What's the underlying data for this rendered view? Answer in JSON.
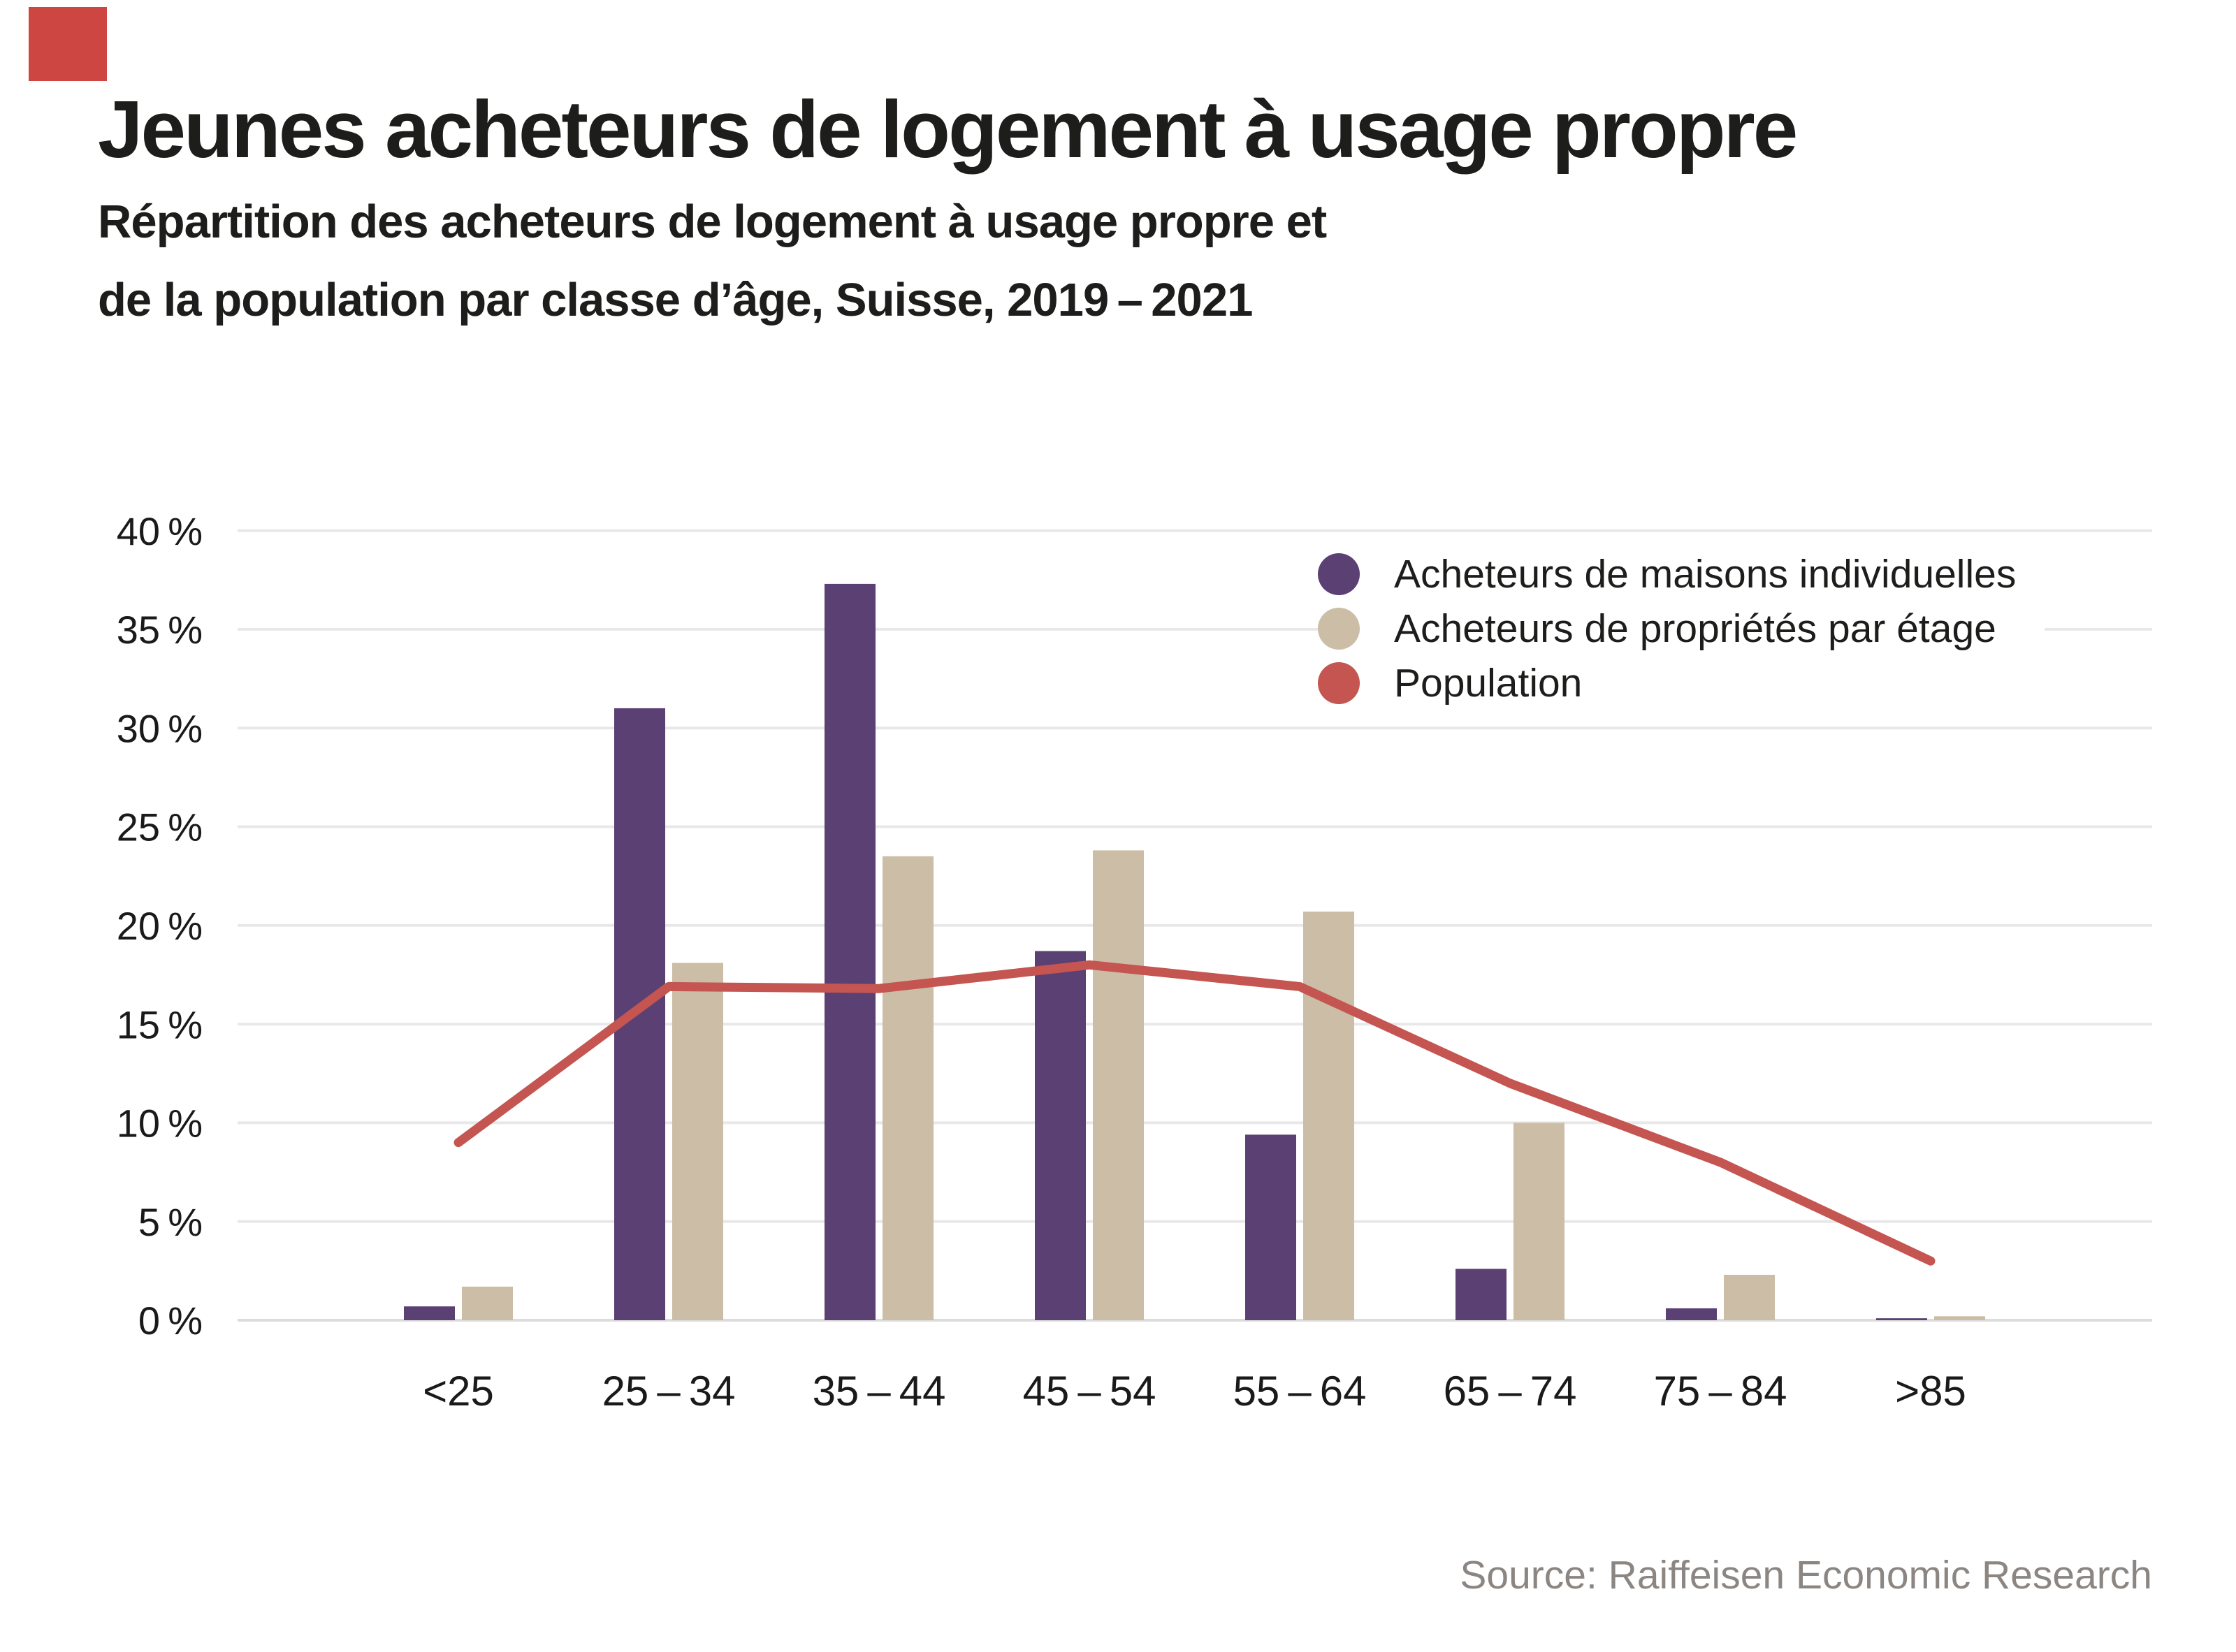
{
  "logo": {
    "name": "raiffeisen-red-square",
    "color": "#CE4641"
  },
  "header": {
    "title": "Jeunes acheteurs de logement à usage propre",
    "subtitle_line1": "Répartition des acheteurs de logement à usage propre et",
    "subtitle_line2": "de la population par classe d’âge, Suisse, 2019 – 2021"
  },
  "legend": {
    "items": [
      {
        "label": "Acheteurs de maisons individuelles",
        "color": "#5B4074"
      },
      {
        "label": "Acheteurs de propriétés par étage",
        "color": "#CCBDA6"
      },
      {
        "label": "Population",
        "color": "#C45551"
      }
    ]
  },
  "source": {
    "text": "Source: Raiffeisen Economic Research",
    "color": "#8C8682"
  },
  "chart_data": {
    "type": "bar+line",
    "title": "Jeunes acheteurs de logement à usage propre",
    "categories": [
      "<25",
      "25 – 34",
      "35 – 44",
      "45 – 54",
      "55 – 64",
      "65 – 74",
      "75 – 84",
      ">85"
    ],
    "series": [
      {
        "name": "Acheteurs de maisons individuelles",
        "type": "bar",
        "color": "#5B4074",
        "values": [
          0.7,
          31.0,
          37.3,
          18.7,
          9.4,
          2.6,
          0.6,
          0.1
        ]
      },
      {
        "name": "Acheteurs de propriétés par étage",
        "type": "bar",
        "color": "#CCBDA6",
        "values": [
          1.7,
          18.1,
          23.5,
          23.8,
          20.7,
          10.0,
          2.3,
          0.2
        ]
      },
      {
        "name": "Population",
        "type": "line",
        "color": "#C45551",
        "values": [
          9.0,
          16.9,
          16.8,
          18.0,
          16.9,
          12.0,
          8.0,
          3.0
        ]
      }
    ],
    "xlabel": "",
    "ylabel": "",
    "ylim": [
      0,
      40
    ],
    "ytick_step": 5,
    "ytick_labels": [
      "0 %",
      "5 %",
      "10 %",
      "15 %",
      "20 %",
      "25 %",
      "30 %",
      "35 %",
      "40 %"
    ],
    "grid": true,
    "legend_position": "top-right",
    "colors": {
      "gridline": "#E8E8E8",
      "baseline": "#DCDCDC",
      "tick_text": "#1A1A1A"
    }
  }
}
